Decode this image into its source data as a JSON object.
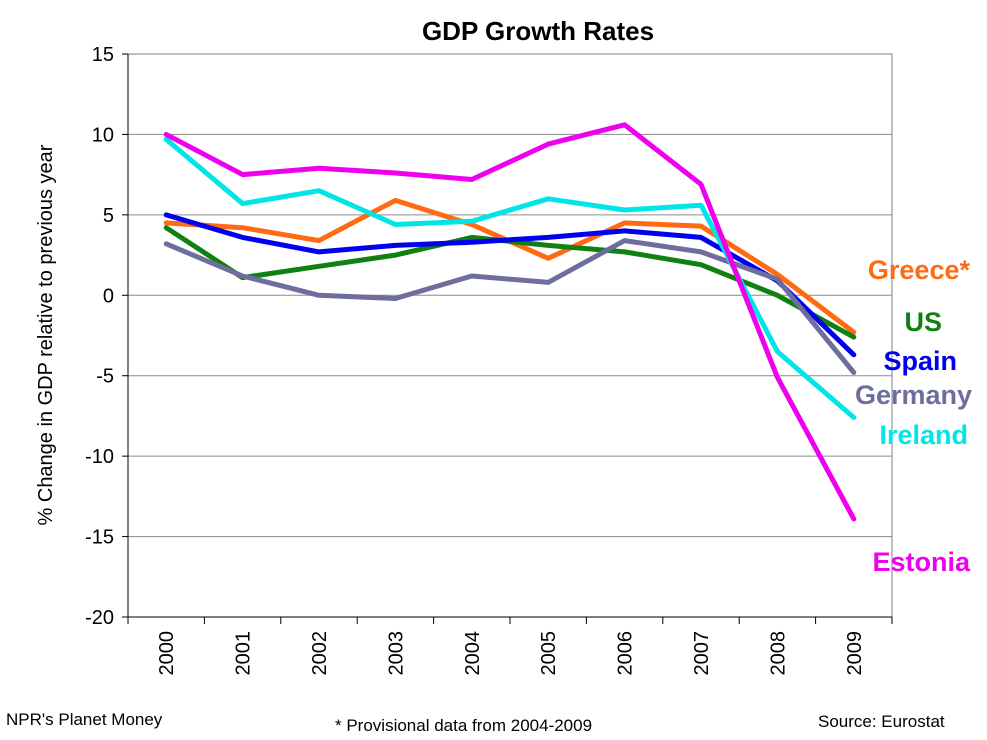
{
  "chart_data": {
    "type": "line",
    "title": "GDP Growth Rates",
    "xlabel": "",
    "ylabel": "% Change in GDP relative to previous year",
    "x": [
      "2000",
      "2001",
      "2002",
      "2003",
      "2004",
      "2005",
      "2006",
      "2007",
      "2008",
      "2009"
    ],
    "ylim": [
      -20,
      15
    ],
    "yticks": [
      "15",
      "10",
      "5",
      "0",
      "-5",
      "-10",
      "-15",
      "-20"
    ],
    "grid": true,
    "series": [
      {
        "name": "Greece*",
        "color": "#FF6A13",
        "values": [
          4.5,
          4.2,
          3.4,
          5.9,
          4.4,
          2.3,
          4.5,
          4.3,
          1.3,
          -2.3
        ]
      },
      {
        "name": "US",
        "color": "#108010",
        "values": [
          4.2,
          1.1,
          1.8,
          2.5,
          3.6,
          3.1,
          2.7,
          1.9,
          0.0,
          -2.6
        ]
      },
      {
        "name": "Spain",
        "color": "#0000EE",
        "values": [
          5.0,
          3.6,
          2.7,
          3.1,
          3.3,
          3.6,
          4.0,
          3.6,
          0.9,
          -3.7
        ]
      },
      {
        "name": "Germany",
        "color": "#6E6E9E",
        "values": [
          3.2,
          1.2,
          0.0,
          -0.2,
          1.2,
          0.8,
          3.4,
          2.7,
          1.0,
          -4.8
        ]
      },
      {
        "name": "Ireland",
        "color": "#00E5E5",
        "values": [
          9.7,
          5.7,
          6.5,
          4.4,
          4.6,
          6.0,
          5.3,
          5.6,
          -3.5,
          -7.6
        ]
      },
      {
        "name": "Estonia",
        "color": "#EE00EE",
        "values": [
          10.0,
          7.5,
          7.9,
          7.6,
          7.2,
          9.4,
          10.6,
          6.9,
          -5.1,
          -13.9
        ]
      }
    ],
    "series_labels": [
      "Greece*",
      "US",
      "Spain",
      "Germany",
      "Ireland",
      "Estonia"
    ]
  },
  "footer": {
    "credit": "NPR's Planet Money",
    "note": "* Provisional data from 2004-2009",
    "source": "Source: Eurostat"
  }
}
